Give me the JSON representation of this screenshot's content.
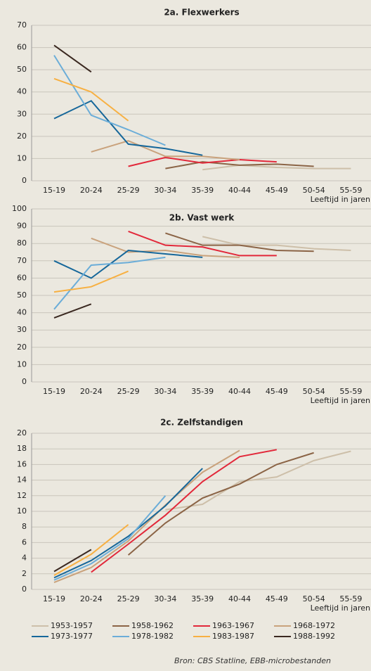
{
  "chart_data": [
    {
      "type": "line",
      "title": "2a. Flexwerkers",
      "xlabel": "Leeftijd in jaren",
      "categories": [
        "15-19",
        "20-24",
        "25-29",
        "30-34",
        "35-39",
        "40-44",
        "45-49",
        "50-54",
        "55-59"
      ],
      "ylim": [
        0,
        70
      ],
      "yticks": [
        0,
        10,
        20,
        30,
        40,
        50,
        60,
        70
      ],
      "grid": true,
      "series": [
        {
          "name": "1953-1957",
          "color": "#cdbfa9",
          "values": [
            null,
            null,
            null,
            null,
            5,
            7,
            6,
            5.5,
            5.5
          ]
        },
        {
          "name": "1958-1962",
          "color": "#8b6446",
          "values": [
            null,
            null,
            null,
            5.5,
            8.5,
            7,
            7.5,
            6.5,
            null
          ]
        },
        {
          "name": "1963-1967",
          "color": "#e2283a",
          "values": [
            null,
            null,
            6.5,
            10.5,
            8,
            9.5,
            8.5,
            null,
            null
          ]
        },
        {
          "name": "1968-1972",
          "color": "#c9a27c",
          "values": [
            null,
            13,
            18,
            11,
            11,
            9.5,
            null,
            null,
            null
          ]
        },
        {
          "name": "1973-1977",
          "color": "#16679a",
          "values": [
            28,
            36,
            16.5,
            14.5,
            11.5,
            null,
            null,
            null,
            null
          ]
        },
        {
          "name": "1978-1982",
          "color": "#6badd8",
          "values": [
            56.5,
            29.5,
            23,
            16,
            null,
            null,
            null,
            null,
            null
          ]
        },
        {
          "name": "1983-1987",
          "color": "#f7b042",
          "values": [
            46,
            40,
            27,
            null,
            null,
            null,
            null,
            null,
            null
          ]
        },
        {
          "name": "1988-1992",
          "color": "#3a2820",
          "values": [
            61,
            49,
            null,
            null,
            null,
            null,
            null,
            null,
            null
          ]
        }
      ]
    },
    {
      "type": "line",
      "title": "2b. Vast werk",
      "xlabel": "Leeftijd in jaren",
      "categories": [
        "15-19",
        "20-24",
        "25-29",
        "30-34",
        "35-39",
        "40-44",
        "45-49",
        "50-54",
        "55-59"
      ],
      "ylim": [
        0,
        100
      ],
      "yticks": [
        0,
        10,
        20,
        30,
        40,
        50,
        60,
        70,
        80,
        90,
        100
      ],
      "grid": true,
      "series": [
        {
          "name": "1953-1957",
          "color": "#cdbfa9",
          "values": [
            null,
            null,
            null,
            null,
            84,
            79,
            79,
            77,
            76
          ]
        },
        {
          "name": "1958-1962",
          "color": "#8b6446",
          "values": [
            null,
            null,
            null,
            86,
            79,
            79,
            76,
            75.5,
            null
          ]
        },
        {
          "name": "1963-1967",
          "color": "#e2283a",
          "values": [
            null,
            null,
            87,
            79,
            78,
            73,
            73,
            null,
            null
          ]
        },
        {
          "name": "1968-1972",
          "color": "#c9a27c",
          "values": [
            null,
            83,
            75,
            76,
            73,
            72,
            null,
            null,
            null
          ]
        },
        {
          "name": "1973-1977",
          "color": "#16679a",
          "values": [
            70,
            60,
            76,
            74,
            72,
            null,
            null,
            null,
            null
          ]
        },
        {
          "name": "1978-1982",
          "color": "#6badd8",
          "values": [
            42,
            67.5,
            69,
            72,
            null,
            null,
            null,
            null,
            null
          ]
        },
        {
          "name": "1983-1987",
          "color": "#f7b042",
          "values": [
            52,
            55,
            64,
            null,
            null,
            null,
            null,
            null,
            null
          ]
        },
        {
          "name": "1988-1992",
          "color": "#3a2820",
          "values": [
            37,
            45,
            null,
            null,
            null,
            null,
            null,
            null,
            null
          ]
        }
      ]
    },
    {
      "type": "line",
      "title": "2c. Zelfstandigen",
      "xlabel": "Leeftijd in jaren",
      "categories": [
        "15-19",
        "20-24",
        "25-29",
        "30-34",
        "35-39",
        "40-44",
        "45-49",
        "50-54",
        "55-59"
      ],
      "ylim": [
        0,
        20
      ],
      "yticks": [
        0,
        2,
        4,
        6,
        8,
        10,
        12,
        14,
        16,
        18,
        20
      ],
      "grid": true,
      "series": [
        {
          "name": "1953-1957",
          "color": "#cdbfa9",
          "values": [
            null,
            null,
            null,
            10.2,
            10.9,
            13.8,
            14.4,
            16.5,
            17.7
          ]
        },
        {
          "name": "1958-1962",
          "color": "#8b6446",
          "values": [
            null,
            null,
            4.4,
            8.5,
            11.7,
            13.5,
            16,
            17.5,
            null
          ]
        },
        {
          "name": "1963-1967",
          "color": "#e2283a",
          "values": [
            null,
            2.2,
            5.8,
            9.5,
            13.8,
            17,
            17.9,
            null,
            null
          ]
        },
        {
          "name": "1968-1972",
          "color": "#c9a27c",
          "values": [
            0.9,
            2.8,
            6.2,
            10.8,
            15,
            17.8,
            null,
            null,
            null
          ]
        },
        {
          "name": "1973-1977",
          "color": "#16679a",
          "values": [
            1.5,
            3.7,
            6.8,
            10.7,
            15.5,
            null,
            null,
            null,
            null
          ]
        },
        {
          "name": "1978-1982",
          "color": "#6badd8",
          "values": [
            1.2,
            3.3,
            6.5,
            12,
            null,
            null,
            null,
            null,
            null
          ]
        },
        {
          "name": "1983-1987",
          "color": "#f7b042",
          "values": [
            1.8,
            4.5,
            8.3,
            null,
            null,
            null,
            null,
            null,
            null
          ]
        },
        {
          "name": "1988-1992",
          "color": "#3a2820",
          "values": [
            2.3,
            5.1,
            null,
            null,
            null,
            null,
            null,
            null,
            null
          ]
        }
      ]
    }
  ],
  "source": "Bron: CBS Statline, EBB-microbestanden"
}
